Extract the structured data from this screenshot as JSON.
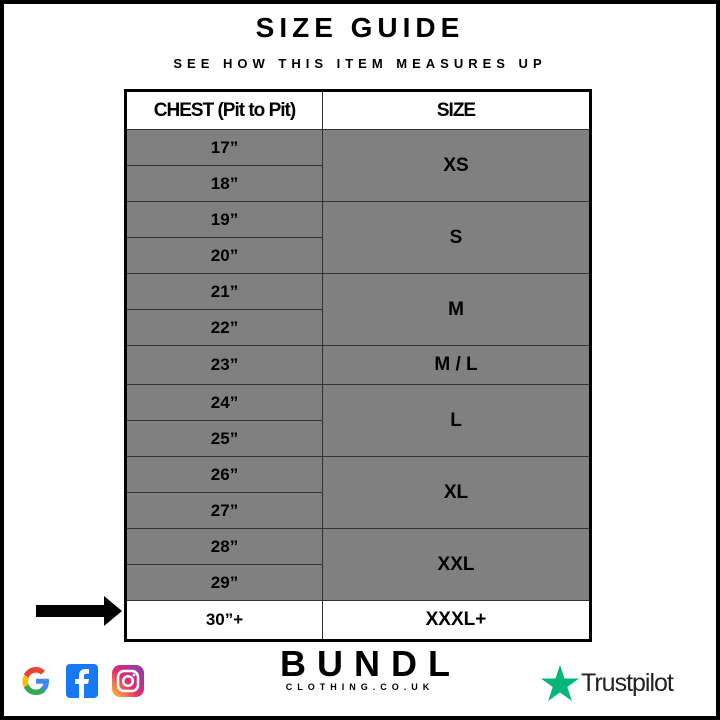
{
  "title": "SIZE GUIDE",
  "subtitle": "SEE HOW THIS ITEM MEASURES UP",
  "table": {
    "headers": [
      "CHEST (Pit to Pit)",
      "SIZE"
    ],
    "groups": [
      {
        "size": "XS",
        "chest": [
          "17”",
          "18”"
        ]
      },
      {
        "size": "S",
        "chest": [
          "19”",
          "20”"
        ]
      },
      {
        "size": "M",
        "chest": [
          "21”",
          "22”"
        ]
      },
      {
        "size": "M / L",
        "chest": [
          "23”"
        ]
      },
      {
        "size": "L",
        "chest": [
          "24”",
          "25”"
        ]
      },
      {
        "size": "XL",
        "chest": [
          "26”",
          "27”"
        ]
      },
      {
        "size": "XXL",
        "chest": [
          "28”",
          "29”"
        ]
      },
      {
        "size": "XXXL+",
        "chest": [
          "30”+"
        ],
        "highlight": true
      }
    ],
    "row_fill": "#808080"
  },
  "brand": {
    "name": "BUNDL",
    "domain": "CLOTHING.CO.UK"
  },
  "social_icons": [
    "google-icon",
    "facebook-icon",
    "instagram-icon"
  ],
  "trustpilot": {
    "label": "Trustpilot",
    "star_color": "#00B67A"
  }
}
